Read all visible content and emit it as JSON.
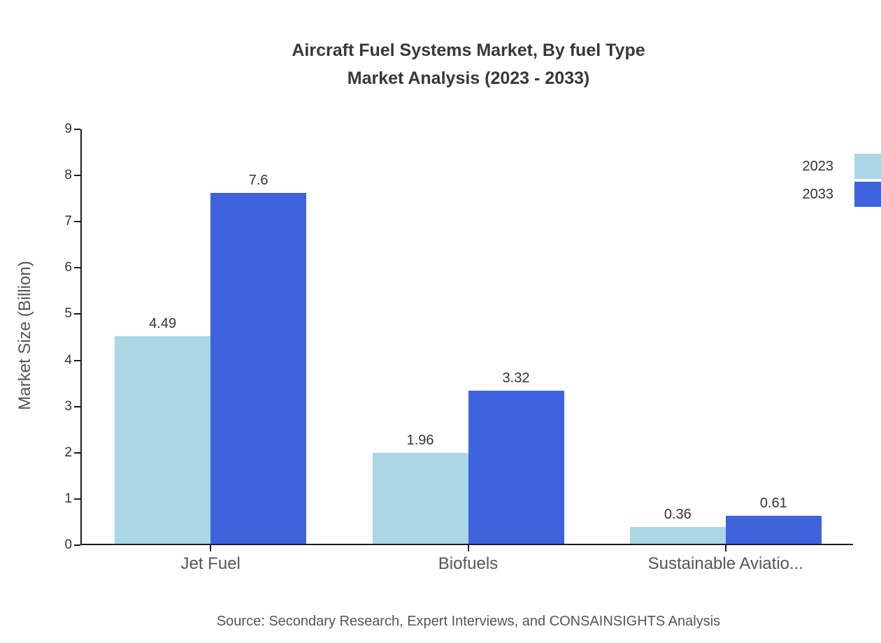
{
  "title": {
    "line1": "Aircraft Fuel Systems Market, By fuel Type",
    "line2": "Market Analysis (2023 - 2033)"
  },
  "source": "Source: Secondary Research, Expert Interviews, and CONSAINSIGHTS Analysis",
  "chart_data": {
    "type": "bar",
    "title": "Aircraft Fuel Systems Market, By fuel Type Market Analysis (2023 - 2033)",
    "categories": [
      "Jet Fuel",
      "Biofuels",
      "Sustainable Aviatio..."
    ],
    "series": [
      {
        "name": "2023",
        "color": "#aad6e6",
        "values": [
          4.49,
          1.96,
          0.36
        ]
      },
      {
        "name": "2033",
        "color": "#3e63dd",
        "values": [
          7.6,
          3.32,
          0.61
        ]
      }
    ],
    "xlabel": "",
    "ylabel": "Market Size (Billion)",
    "ylim": [
      0,
      9
    ],
    "yticks": [
      0,
      1,
      2,
      3,
      4,
      5,
      6,
      7,
      8,
      9
    ],
    "grid": false,
    "legend_position": "top-right",
    "axis_color": "#1a1a1a"
  }
}
